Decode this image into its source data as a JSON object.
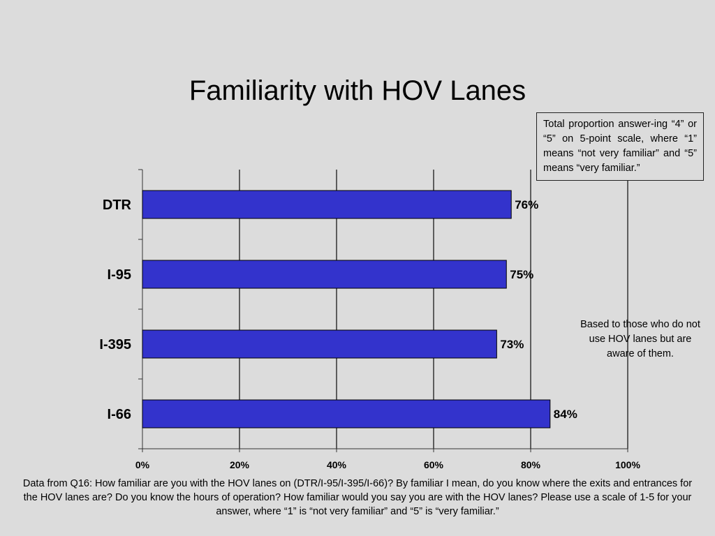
{
  "chart_data": {
    "type": "bar",
    "orientation": "horizontal",
    "title": "Familiarity with HOV Lanes",
    "categories": [
      "DTR",
      "I-95",
      "I-395",
      "I-66"
    ],
    "values": [
      76,
      75,
      73,
      84
    ],
    "value_labels": [
      "76%",
      "75%",
      "73%",
      "84%"
    ],
    "xlim": [
      0,
      100
    ],
    "xticks": [
      "0%",
      "20%",
      "40%",
      "60%",
      "80%",
      "100%"
    ],
    "grid": true,
    "bar_color": "#3333cc",
    "legend": false
  },
  "note_box": "Total proportion answer-ing “4” or “5” on 5-point scale, where “1” means “not very familiar” and “5” means “very familiar.”",
  "side_note": "Based to those who do not use HOV lanes but are aware of them.",
  "footnote": "Data from Q16:  How familiar are  you with the HOV lanes on (DTR/I-95/I-395/I-66)?  By familiar I mean, do you know where the exits and entrances for the HOV lanes are?  Do you know the hours of operation?  How familiar would you say you are with the HOV lanes?  Please use a scale of 1-5 for your answer, where “1” is “not very familiar” and “5” is “very familiar.”"
}
